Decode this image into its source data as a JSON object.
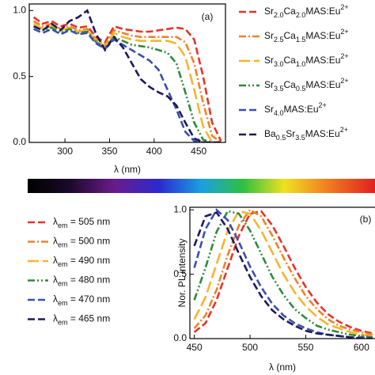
{
  "chart_data": [
    {
      "type": "line",
      "panel": "(a)",
      "x_label": "λ (nm)",
      "x": [
        265,
        275,
        285,
        295,
        305,
        315,
        325,
        335,
        345,
        355,
        365,
        375,
        385,
        395,
        405,
        415,
        425,
        435,
        445,
        455,
        465,
        475
      ],
      "xlim": [
        260,
        480
      ],
      "xticks": [
        300,
        350,
        400,
        450
      ],
      "ylim": [
        0,
        1.05
      ],
      "yticks": [
        {
          "value": 0,
          "label": "0.0"
        },
        {
          "value": 0.5,
          "label": "0.5"
        },
        {
          "value": 1,
          "label": "1.0"
        }
      ],
      "legend": "right",
      "series": [
        {
          "name": "Sr2.0Ca2.0MAS:Eu2+",
          "color": "#e8332a",
          "linestyle": "dashed",
          "values": [
            0.95,
            0.9,
            0.92,
            0.88,
            0.9,
            0.87,
            0.88,
            0.8,
            0.76,
            0.88,
            0.86,
            0.85,
            0.84,
            0.84,
            0.85,
            0.86,
            0.87,
            0.86,
            0.78,
            0.5,
            0.15,
            0.01
          ]
        },
        {
          "name": "Sr2.5Ca1.5MAS:Eu2+",
          "color": "#f0822a",
          "linestyle": "dashdot",
          "values": [
            0.92,
            0.88,
            0.9,
            0.86,
            0.88,
            0.85,
            0.86,
            0.78,
            0.74,
            0.85,
            0.83,
            0.81,
            0.8,
            0.8,
            0.8,
            0.8,
            0.8,
            0.76,
            0.6,
            0.3,
            0.05,
            0
          ]
        },
        {
          "name": "Sr3.0Ca1.0MAS:Eu2+",
          "color": "#f5b52e",
          "linestyle": "longdash",
          "values": [
            0.9,
            0.86,
            0.88,
            0.85,
            0.87,
            0.84,
            0.85,
            0.77,
            0.73,
            0.83,
            0.8,
            0.78,
            0.77,
            0.77,
            0.77,
            0.77,
            0.75,
            0.65,
            0.4,
            0.12,
            0,
            0
          ]
        },
        {
          "name": "Sr3.5Ca0.5MAS:Eu2+",
          "color": "#2e8b3a",
          "linestyle": "dashdotdot",
          "values": [
            0.88,
            0.85,
            0.87,
            0.83,
            0.86,
            0.83,
            0.84,
            0.76,
            0.72,
            0.8,
            0.77,
            0.74,
            0.73,
            0.72,
            0.7,
            0.68,
            0.6,
            0.38,
            0.15,
            0.02,
            0,
            0
          ]
        },
        {
          "name": "Sr4.0MAS:Eu2+",
          "color": "#3b4fb0",
          "linestyle": "dashed",
          "values": [
            0.86,
            0.83,
            0.86,
            0.82,
            0.85,
            0.82,
            0.83,
            0.75,
            0.71,
            0.78,
            0.74,
            0.7,
            0.66,
            0.62,
            0.55,
            0.4,
            0.25,
            0.08,
            0.01,
            0,
            0,
            0
          ]
        },
        {
          "name": "Ba0.5Sr3.5MAS:Eu2+",
          "color": "#1e1a5c",
          "linestyle": "dashed",
          "values": [
            0.88,
            0.85,
            0.9,
            0.85,
            0.92,
            0.95,
            1.0,
            0.82,
            0.7,
            0.8,
            0.72,
            0.6,
            0.48,
            0.42,
            0.38,
            0.35,
            0.28,
            0.15,
            0.03,
            0,
            0,
            0
          ]
        }
      ]
    },
    {
      "type": "line",
      "panel": "(b)",
      "x_label": "λ (nm)",
      "y_label": "Nor. PL intensity",
      "x": [
        450,
        460,
        470,
        480,
        490,
        500,
        510,
        520,
        530,
        540,
        550,
        560,
        570,
        580,
        590,
        600,
        610
      ],
      "xlim": [
        446,
        615
      ],
      "xticks": [
        450,
        500,
        550,
        600
      ],
      "ylim": [
        0,
        1.02
      ],
      "yticks": [
        {
          "value": 0,
          "label": "0.0"
        },
        {
          "value": 0.5,
          "label": "0.5"
        },
        {
          "value": 1,
          "label": "1.0"
        }
      ],
      "legend": "left",
      "series": [
        {
          "name": "λem = 505 nm",
          "color": "#e8332a",
          "linestyle": "dashed",
          "values": [
            0.05,
            0.12,
            0.3,
            0.55,
            0.8,
            0.97,
            0.99,
            0.88,
            0.72,
            0.55,
            0.4,
            0.28,
            0.19,
            0.13,
            0.09,
            0.06,
            0.04
          ]
        },
        {
          "name": "λem = 500 nm",
          "color": "#f0822a",
          "linestyle": "dashdot",
          "values": [
            0.08,
            0.18,
            0.38,
            0.65,
            0.88,
            1.0,
            0.95,
            0.8,
            0.63,
            0.47,
            0.33,
            0.23,
            0.15,
            0.1,
            0.07,
            0.05,
            0.03
          ]
        },
        {
          "name": "λem = 490 nm",
          "color": "#f5b52e",
          "linestyle": "longdash",
          "values": [
            0.15,
            0.32,
            0.58,
            0.84,
            0.99,
            0.97,
            0.84,
            0.67,
            0.5,
            0.36,
            0.25,
            0.17,
            0.11,
            0.08,
            0.05,
            0.03,
            0.02
          ]
        },
        {
          "name": "λem = 480 nm",
          "color": "#2e8b3a",
          "linestyle": "dashdotdot",
          "values": [
            0.3,
            0.55,
            0.83,
            0.99,
            0.97,
            0.84,
            0.66,
            0.48,
            0.34,
            0.23,
            0.16,
            0.1,
            0.07,
            0.05,
            0.03,
            0.02,
            0.01
          ]
        },
        {
          "name": "λem = 470 nm",
          "color": "#3b4fb0",
          "linestyle": "dashed",
          "values": [
            0.55,
            0.85,
            1.0,
            0.92,
            0.75,
            0.56,
            0.4,
            0.27,
            0.18,
            0.12,
            0.08,
            0.05,
            0.03,
            0.02,
            0.01,
            0.01,
            0
          ]
        },
        {
          "name": "λem = 465 nm",
          "color": "#1e1a5c",
          "linestyle": "dashed",
          "values": [
            0.72,
            0.95,
            0.98,
            0.85,
            0.66,
            0.48,
            0.33,
            0.22,
            0.15,
            0.1,
            0.06,
            0.04,
            0.03,
            0.02,
            0.01,
            0,
            0
          ]
        }
      ]
    }
  ]
}
